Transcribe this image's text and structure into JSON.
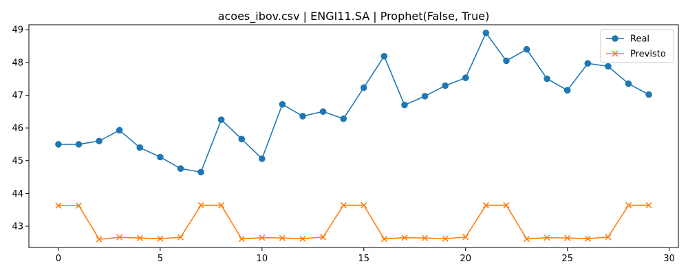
{
  "chart_data": {
    "type": "line",
    "title": "acoes_ibov.csv | ENGI11.SA | Prophet(False, True)",
    "xlabel": "",
    "ylabel": "",
    "xlim": [
      -1.45,
      30.45
    ],
    "ylim": [
      42.35,
      49.15
    ],
    "xticks": [
      0,
      5,
      10,
      15,
      20,
      25,
      30
    ],
    "yticks": [
      43,
      44,
      45,
      46,
      47,
      48,
      49
    ],
    "grid": false,
    "legend_position": "top-right",
    "x": [
      0,
      1,
      2,
      3,
      4,
      5,
      6,
      7,
      8,
      9,
      10,
      11,
      12,
      13,
      14,
      15,
      16,
      17,
      18,
      19,
      20,
      21,
      22,
      23,
      24,
      25,
      26,
      27,
      28,
      29
    ],
    "series": [
      {
        "name": "Real",
        "color": "#1f77b4",
        "marker": "circle",
        "values": [
          45.5,
          45.5,
          45.6,
          45.93,
          45.4,
          45.11,
          44.76,
          44.65,
          46.25,
          45.66,
          45.06,
          46.72,
          46.36,
          46.5,
          46.28,
          47.23,
          48.19,
          46.7,
          46.97,
          47.29,
          47.53,
          48.9,
          48.05,
          48.4,
          47.5,
          47.15,
          47.97,
          47.88,
          47.35,
          47.02
        ]
      },
      {
        "name": "Previsto",
        "color": "#ff7f0e",
        "marker": "x",
        "values": [
          43.63,
          43.63,
          42.6,
          42.66,
          42.64,
          42.62,
          42.66,
          43.64,
          43.64,
          42.61,
          42.65,
          42.64,
          42.62,
          42.67,
          43.64,
          43.64,
          42.61,
          42.65,
          42.64,
          42.62,
          42.67,
          43.64,
          43.64,
          42.61,
          42.65,
          42.64,
          42.62,
          42.67,
          43.64,
          43.64
        ]
      }
    ]
  }
}
